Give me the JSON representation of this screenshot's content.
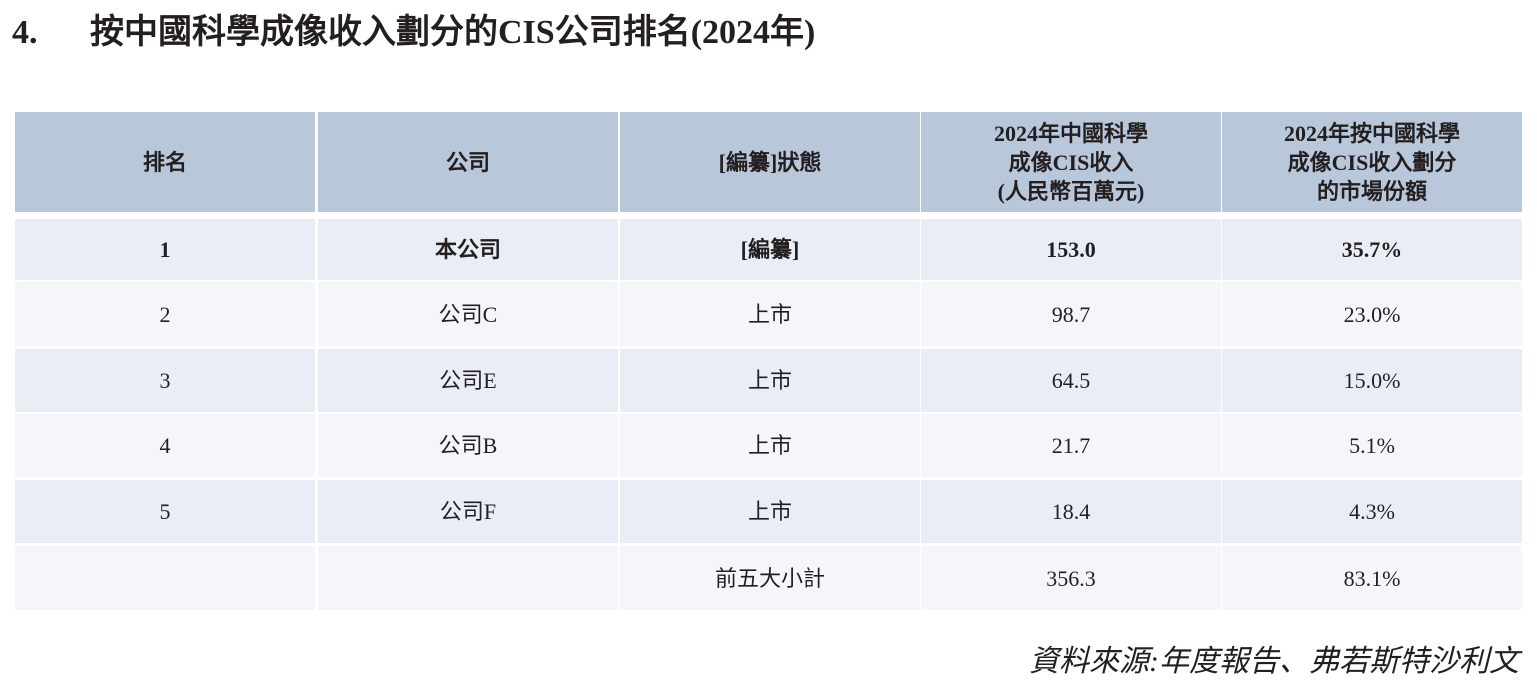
{
  "title": {
    "number": "4.",
    "text": "按中國科學成像收入劃分的CIS公司排名(2024年)"
  },
  "table": {
    "header": [
      [
        "排名"
      ],
      [
        "公司"
      ],
      [
        "[編纂]狀態"
      ],
      [
        "2024年中國科學",
        "成像CIS收入",
        "(人民幣百萬元)"
      ],
      [
        "2024年按中國科學",
        "成像CIS收入劃分",
        "的市場份額"
      ]
    ],
    "rows": [
      [
        "1",
        "本公司",
        "[編纂]",
        "153.0",
        "35.7%"
      ],
      [
        "2",
        "公司C",
        "上市",
        "98.7",
        "23.0%"
      ],
      [
        "3",
        "公司E",
        "上市",
        "64.5",
        "15.0%"
      ],
      [
        "4",
        "公司B",
        "上市",
        "21.7",
        "5.1%"
      ],
      [
        "5",
        "公司F",
        "上市",
        "18.4",
        "4.3%"
      ]
    ],
    "total": {
      "label": "前五大小計",
      "revenue": "356.3",
      "share": "83.1%"
    }
  },
  "source": "資料來源:年度報告、弗若斯特沙利文"
}
